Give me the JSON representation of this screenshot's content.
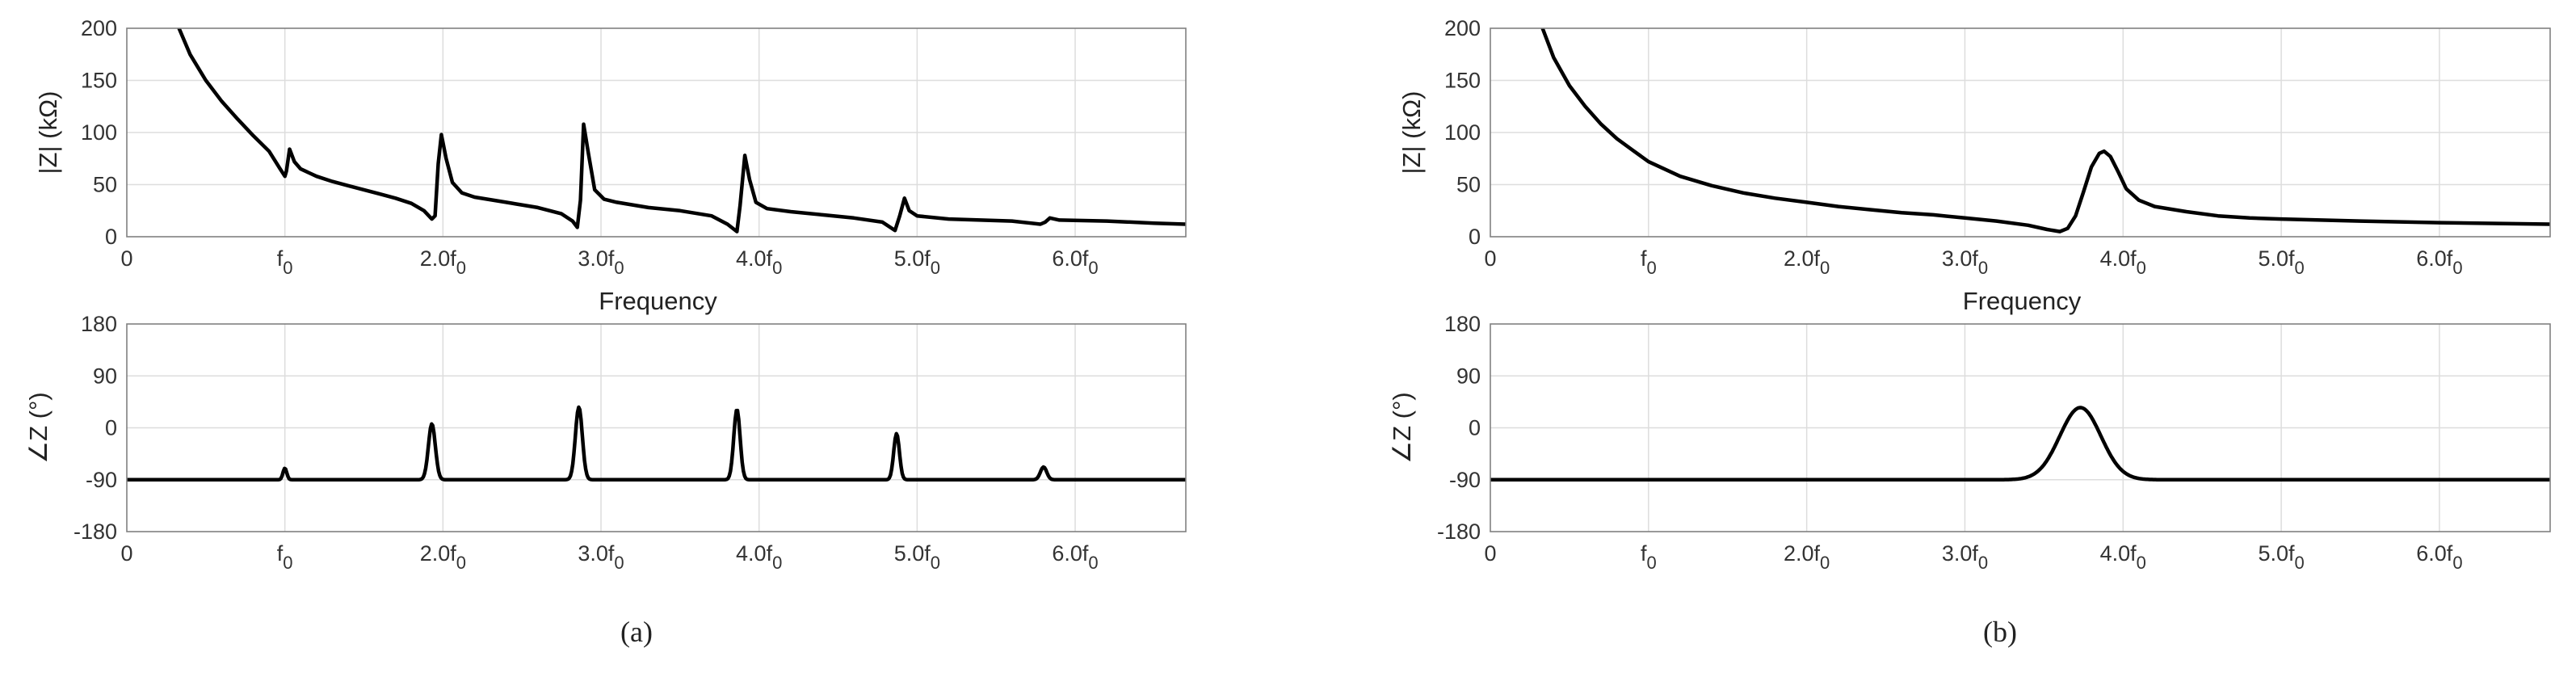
{
  "chart_data": [
    {
      "type": "line",
      "panel": "a-top",
      "xlabel": "Frequency",
      "ylabel": "|Z| (kΩ)",
      "xlim": [
        0,
        6.7
      ],
      "ylim": [
        0,
        200
      ],
      "xticks": [
        0,
        1,
        2,
        3,
        4,
        5,
        6
      ],
      "xticklabels": [
        {
          "main": "0",
          "sub": ""
        },
        {
          "main": "f",
          "sub": "0"
        },
        {
          "main": "2.0f",
          "sub": "0"
        },
        {
          "main": "3.0f",
          "sub": "0"
        },
        {
          "main": "4.0f",
          "sub": "0"
        },
        {
          "main": "5.0f",
          "sub": "0"
        },
        {
          "main": "6.0f",
          "sub": "0"
        }
      ],
      "yticks": [
        0,
        50,
        100,
        150,
        200
      ],
      "yticklabels": [
        "0",
        "50",
        "100",
        "150",
        "200"
      ],
      "grid": true,
      "series": [
        {
          "points": [
            [
              0.33,
              200
            ],
            [
              0.4,
              175
            ],
            [
              0.5,
              150
            ],
            [
              0.6,
              130
            ],
            [
              0.7,
              113
            ],
            [
              0.8,
              97
            ],
            [
              0.9,
              82
            ],
            [
              0.97,
              65
            ],
            [
              1.0,
              58
            ],
            [
              1.01,
              63
            ],
            [
              1.03,
              84
            ],
            [
              1.06,
              72
            ],
            [
              1.1,
              65
            ],
            [
              1.2,
              58
            ],
            [
              1.3,
              53
            ],
            [
              1.4,
              49
            ],
            [
              1.5,
              45
            ],
            [
              1.6,
              41
            ],
            [
              1.7,
              37
            ],
            [
              1.8,
              32
            ],
            [
              1.88,
              25
            ],
            [
              1.93,
              17
            ],
            [
              1.95,
              20
            ],
            [
              1.97,
              70
            ],
            [
              1.99,
              98
            ],
            [
              2.02,
              75
            ],
            [
              2.06,
              52
            ],
            [
              2.12,
              42
            ],
            [
              2.2,
              38
            ],
            [
              2.4,
              33
            ],
            [
              2.6,
              28
            ],
            [
              2.75,
              22
            ],
            [
              2.82,
              15
            ],
            [
              2.85,
              9
            ],
            [
              2.87,
              35
            ],
            [
              2.89,
              108
            ],
            [
              2.92,
              80
            ],
            [
              2.96,
              45
            ],
            [
              3.02,
              36
            ],
            [
              3.1,
              33
            ],
            [
              3.3,
              28
            ],
            [
              3.5,
              25
            ],
            [
              3.7,
              20
            ],
            [
              3.8,
              12
            ],
            [
              3.86,
              5
            ],
            [
              3.88,
              30
            ],
            [
              3.91,
              78
            ],
            [
              3.94,
              55
            ],
            [
              3.98,
              33
            ],
            [
              4.05,
              27
            ],
            [
              4.2,
              24
            ],
            [
              4.4,
              21
            ],
            [
              4.6,
              18
            ],
            [
              4.78,
              14
            ],
            [
              4.86,
              6
            ],
            [
              4.89,
              20
            ],
            [
              4.92,
              37
            ],
            [
              4.95,
              25
            ],
            [
              5.0,
              20
            ],
            [
              5.2,
              17
            ],
            [
              5.4,
              16
            ],
            [
              5.6,
              15
            ],
            [
              5.78,
              12
            ],
            [
              5.81,
              14
            ],
            [
              5.84,
              18
            ],
            [
              5.9,
              16
            ],
            [
              6.2,
              15
            ],
            [
              6.5,
              13
            ],
            [
              6.7,
              12
            ]
          ]
        }
      ]
    },
    {
      "type": "line",
      "panel": "a-bottom",
      "xlabel": "",
      "ylabel": "∠Z (°)",
      "xlim": [
        0,
        6.7
      ],
      "ylim": [
        -180,
        180
      ],
      "xticks": [
        0,
        1,
        2,
        3,
        4,
        5,
        6
      ],
      "xticklabels": [
        {
          "main": "0",
          "sub": ""
        },
        {
          "main": "f",
          "sub": "0"
        },
        {
          "main": "2.0f",
          "sub": "0"
        },
        {
          "main": "3.0f",
          "sub": "0"
        },
        {
          "main": "4.0f",
          "sub": "0"
        },
        {
          "main": "5.0f",
          "sub": "0"
        },
        {
          "main": "6.0f",
          "sub": "0"
        }
      ],
      "yticks": [
        -180,
        -90,
        0,
        90,
        180
      ],
      "yticklabels": [
        "-180",
        "-90",
        "0",
        "90",
        "180"
      ],
      "grid": true,
      "series": [
        {
          "baseline": -90,
          "peaks": [
            {
              "center": 1.0,
              "height": 20,
              "width": 0.012
            },
            {
              "center": 1.93,
              "height": 97,
              "width": 0.022
            },
            {
              "center": 2.86,
              "height": 126,
              "width": 0.022
            },
            {
              "center": 3.86,
              "height": 122,
              "width": 0.02
            },
            {
              "center": 4.87,
              "height": 80,
              "width": 0.018
            },
            {
              "center": 5.8,
              "height": 22,
              "width": 0.02
            }
          ]
        }
      ]
    },
    {
      "type": "line",
      "panel": "b-top",
      "xlabel": "Frequency",
      "ylabel": "|Z| (kΩ)",
      "xlim": [
        0,
        6.7
      ],
      "ylim": [
        0,
        200
      ],
      "xticks": [
        0,
        1,
        2,
        3,
        4,
        5,
        6
      ],
      "xticklabels": [
        {
          "main": "0",
          "sub": ""
        },
        {
          "main": "f",
          "sub": "0"
        },
        {
          "main": "2.0f",
          "sub": "0"
        },
        {
          "main": "3.0f",
          "sub": "0"
        },
        {
          "main": "4.0f",
          "sub": "0"
        },
        {
          "main": "5.0f",
          "sub": "0"
        },
        {
          "main": "6.0f",
          "sub": "0"
        }
      ],
      "yticks": [
        0,
        50,
        100,
        150,
        200
      ],
      "yticklabels": [
        "0",
        "50",
        "100",
        "150",
        "200"
      ],
      "grid": true,
      "series": [
        {
          "points": [
            [
              0.33,
              200
            ],
            [
              0.4,
              172
            ],
            [
              0.5,
              145
            ],
            [
              0.6,
              125
            ],
            [
              0.7,
              108
            ],
            [
              0.8,
              94
            ],
            [
              0.9,
              83
            ],
            [
              1.0,
              72
            ],
            [
              1.2,
              58
            ],
            [
              1.4,
              49
            ],
            [
              1.6,
              42
            ],
            [
              1.8,
              37
            ],
            [
              2.0,
              33
            ],
            [
              2.2,
              29
            ],
            [
              2.4,
              26
            ],
            [
              2.6,
              23
            ],
            [
              2.8,
              21
            ],
            [
              3.0,
              18
            ],
            [
              3.2,
              15
            ],
            [
              3.4,
              11
            ],
            [
              3.52,
              7
            ],
            [
              3.6,
              5
            ],
            [
              3.65,
              8
            ],
            [
              3.7,
              20
            ],
            [
              3.75,
              43
            ],
            [
              3.8,
              67
            ],
            [
              3.85,
              80
            ],
            [
              3.88,
              82
            ],
            [
              3.92,
              77
            ],
            [
              3.97,
              62
            ],
            [
              4.02,
              46
            ],
            [
              4.1,
              35
            ],
            [
              4.2,
              29
            ],
            [
              4.4,
              24
            ],
            [
              4.6,
              20
            ],
            [
              4.8,
              18
            ],
            [
              5.0,
              17
            ],
            [
              5.5,
              15
            ],
            [
              6.0,
              13.5
            ],
            [
              6.7,
              12
            ]
          ]
        }
      ]
    },
    {
      "type": "line",
      "panel": "b-bottom",
      "xlabel": "",
      "ylabel": "∠Z (°)",
      "xlim": [
        0,
        6.7
      ],
      "ylim": [
        -180,
        180
      ],
      "xticks": [
        0,
        1,
        2,
        3,
        4,
        5,
        6
      ],
      "xticklabels": [
        {
          "main": "0",
          "sub": ""
        },
        {
          "main": "f",
          "sub": "0"
        },
        {
          "main": "2.0f",
          "sub": "0"
        },
        {
          "main": "3.0f",
          "sub": "0"
        },
        {
          "main": "4.0f",
          "sub": "0"
        },
        {
          "main": "5.0f",
          "sub": "0"
        },
        {
          "main": "6.0f",
          "sub": "0"
        }
      ],
      "yticks": [
        -180,
        -90,
        0,
        90,
        180
      ],
      "yticklabels": [
        "-180",
        "-90",
        "0",
        "90",
        "180"
      ],
      "grid": true,
      "series": [
        {
          "baseline": -90,
          "peaks": [
            {
              "center": 3.73,
              "height": 125,
              "width": 0.13
            }
          ]
        }
      ]
    }
  ],
  "captions": [
    "(a)",
    "(b)"
  ]
}
